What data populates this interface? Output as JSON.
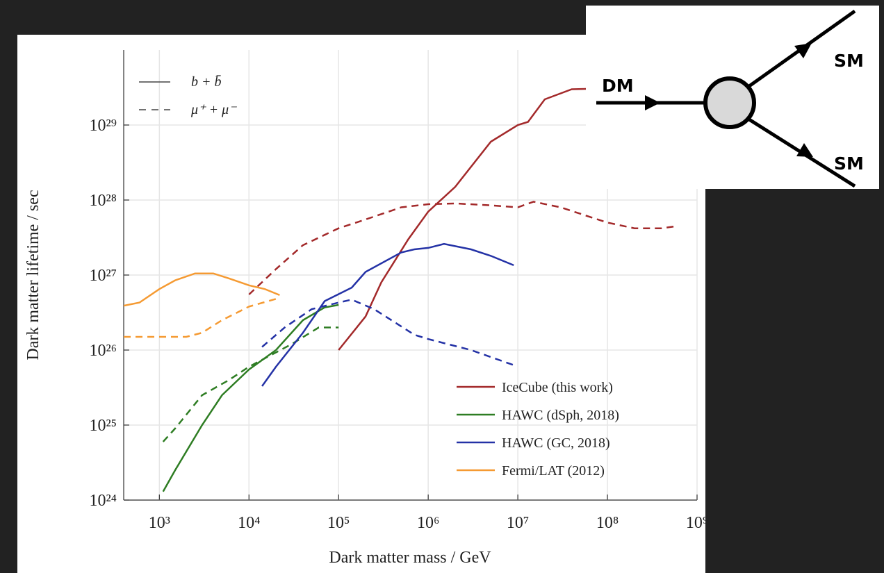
{
  "chart_data": {
    "type": "line",
    "xlabel": "Dark matter mass / GeV",
    "ylabel": "Dark matter lifetime / sec",
    "log_x": true,
    "log_y": true,
    "grid": true,
    "xlim": [
      400,
      1000000000
    ],
    "ylim": [
      1e+24,
      1e+30
    ],
    "xticks": [
      {
        "value": 1000,
        "label": "10³"
      },
      {
        "value": 10000,
        "label": "10⁴"
      },
      {
        "value": 100000,
        "label": "10⁵"
      },
      {
        "value": 1000000,
        "label": "10⁶"
      },
      {
        "value": 10000000,
        "label": "10⁷"
      },
      {
        "value": 100000000,
        "label": "10⁸"
      },
      {
        "value": 1000000000,
        "label": "10⁹"
      }
    ],
    "yticks": [
      {
        "value": 1e+24,
        "label": "10²⁴"
      },
      {
        "value": 1e+25,
        "label": "10²⁵"
      },
      {
        "value": 1e+26,
        "label": "10²⁶"
      },
      {
        "value": 1e+27,
        "label": "10²⁷"
      },
      {
        "value": 1e+28,
        "label": "10²⁸"
      },
      {
        "value": 1e+29,
        "label": "10²⁹"
      }
    ],
    "channels": [
      {
        "name": "b + b̄",
        "dash": false
      },
      {
        "name": "μ⁺ + μ⁻",
        "dash": true
      }
    ],
    "series": [
      {
        "name": "IceCube (this work)",
        "color": "#a3292a",
        "curves": [
          {
            "x": [
              100000,
              200000,
              300000,
              600000,
              1000000,
              2000000,
              5000000,
              10000000,
              13000000,
              20000000,
              40000000,
              130000000
            ],
            "values": [
              1e+26,
              2.8e+26,
              8e+26,
              3e+27,
              7e+27,
              1.5e+28,
              6e+28,
              1e+29,
              1.1e+29,
              2.2e+29,
              3e+29,
              3.1e+29
            ]
          },
          {
            "x": [
              10000,
              20000,
              40000,
              100000,
              200000,
              500000,
              1000000,
              2000000,
              5000000,
              10000000,
              15000000,
              30000000,
              100000000,
              200000000,
              400000000,
              600000000
            ],
            "values": [
              5.5e+26,
              1.2e+27,
              2.5e+27,
              4.2e+27,
              5.5e+27,
              8e+27,
              8.8e+27,
              9e+27,
              8.5e+27,
              8e+27,
              9.5e+27,
              8e+27,
              5e+27,
              4.2e+27,
              4.2e+27,
              4.5e+27
            ]
          }
        ]
      },
      {
        "name": "HAWC (dSph, 2018)",
        "color": "#2e7d23",
        "curves": [
          {
            "x": [
              1100,
              1500,
              3000,
              5000,
              10000,
              20000,
              40000,
              70000,
              100000
            ],
            "values": [
              1.3e+24,
              2.5e+24,
              1e+25,
              2.5e+25,
              5.5e+25,
              1e+26,
              2.5e+26,
              3.7e+26,
              4e+26
            ]
          },
          {
            "x": [
              1100,
              1500,
              3000,
              6000,
              10000,
              30000,
              60000,
              100000
            ],
            "values": [
              6e+24,
              9e+24,
              2.5e+25,
              4e+25,
              6e+25,
              1.2e+26,
              2e+26,
              2e+26
            ]
          }
        ]
      },
      {
        "name": "HAWC (GC, 2018)",
        "color": "#2432a6",
        "curves": [
          {
            "x": [
              14000,
              20000,
              40000,
              70000,
              140000,
              200000,
              500000,
              700000,
              1000000,
              1500000,
              3000000,
              5000000,
              9000000
            ],
            "values": [
              3.3e+25,
              6e+25,
              1.7e+26,
              4.5e+26,
              6.8e+26,
              1.1e+27,
              2e+27,
              2.2e+27,
              2.3e+27,
              2.6e+27,
              2.2e+27,
              1.8e+27,
              1.35e+27
            ]
          },
          {
            "x": [
              14000,
              25000,
              50000,
              100000,
              140000,
              250000,
              700000,
              1000000,
              3000000,
              9000000
            ],
            "values": [
              1.1e+26,
              2e+26,
              3.5e+26,
              4.3e+26,
              4.7e+26,
              3.5e+26,
              1.6e+26,
              1.4e+26,
              1e+26,
              6.3e+25
            ]
          }
        ]
      },
      {
        "name": "Fermi/LAT (2012)",
        "color": "#f59a32",
        "curves": [
          {
            "x": [
              400,
              600,
              1000,
              1500,
              2500,
              4000,
              6000,
              10000,
              15000,
              22000
            ],
            "values": [
              3.9e+26,
              4.3e+26,
              6.5e+26,
              8.5e+26,
              1.05e+27,
              1.05e+27,
              9e+26,
              7.3e+26,
              6.5e+26,
              5.4e+26
            ]
          },
          {
            "x": [
              400,
              1000,
              2000,
              3000,
              5000,
              10000,
              20000
            ],
            "values": [
              1.5e+26,
              1.5e+26,
              1.5e+26,
              1.7e+26,
              2.5e+26,
              3.8e+26,
              4.8e+26
            ]
          }
        ]
      }
    ]
  },
  "diagram": {
    "incoming": "DM",
    "outgoing": [
      "SM",
      "SM"
    ]
  }
}
